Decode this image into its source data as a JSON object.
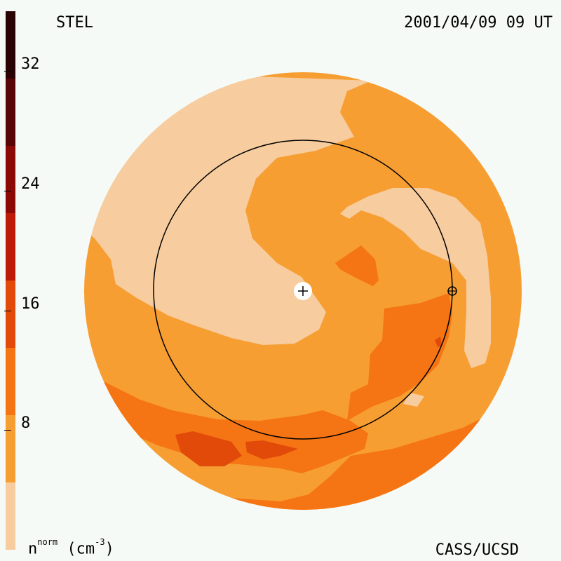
{
  "header": {
    "instrument": "STEL",
    "datetime": "2001/04/09 09 UT"
  },
  "footer": {
    "credit": "CASS/UCSD",
    "units_base": "n",
    "units_sup": "norm",
    "units_rest": "(cm",
    "units_exp": "-3",
    "units_close": ")"
  },
  "colorbar": {
    "range": [
      0,
      36
    ],
    "bands": [
      "#f7cc9e",
      "#f79e33",
      "#f57413",
      "#e14a08",
      "#bd1a08",
      "#8c0a06",
      "#5a0505",
      "#2a0404"
    ],
    "tick_labels": [
      "32",
      "24",
      "16",
      "8"
    ],
    "tick_values": [
      32,
      24,
      16,
      8
    ]
  },
  "map": {
    "colors": {
      "low": "#f7cc9e",
      "mid": "#f79e33",
      "high": "#f57413",
      "higher": "#e14a08",
      "orbit_line": "#000000"
    },
    "sun_marker": "plus-icon",
    "earth_marker": "earth-icon"
  }
}
